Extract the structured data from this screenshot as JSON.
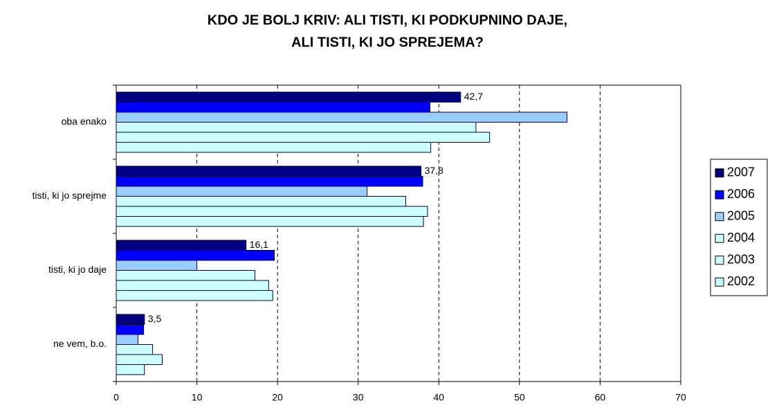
{
  "chart_data": {
    "type": "hbar",
    "title": [
      "KDO JE BOLJ KRIV: ALI TISTI, KI PODKUPNINO DAJE,",
      "ALI TISTI, KI JO SPREJEMA?"
    ],
    "categories": [
      "oba enako",
      "tisti, ki jo sprejme",
      "tisti, ki jo daje",
      "ne vem, b.o."
    ],
    "series": [
      {
        "name": "2007",
        "color": "#000080",
        "values": [
          42.7,
          37.8,
          16.1,
          3.5
        ],
        "value_labels": [
          "42,7",
          "37,8",
          "16,1",
          "3,5"
        ]
      },
      {
        "name": "2006",
        "color": "#0000ff",
        "values": [
          38.9,
          38.0,
          19.6,
          3.4
        ]
      },
      {
        "name": "2005",
        "color": "#99ccff",
        "values": [
          55.9,
          31.1,
          10.0,
          2.7
        ]
      },
      {
        "name": "2004",
        "color": "#ccffff",
        "values": [
          44.6,
          35.9,
          17.2,
          4.5
        ]
      },
      {
        "name": "2003",
        "color": "#ccffff",
        "values": [
          46.3,
          38.6,
          18.9,
          5.7
        ]
      },
      {
        "name": "2002",
        "color": "#ccffff",
        "values": [
          39.0,
          38.1,
          19.4,
          3.5
        ]
      }
    ],
    "xlim": [
      0,
      70
    ],
    "xticks": [
      0,
      10,
      20,
      30,
      40,
      50,
      60,
      70
    ],
    "grid": true,
    "legend": "right"
  }
}
